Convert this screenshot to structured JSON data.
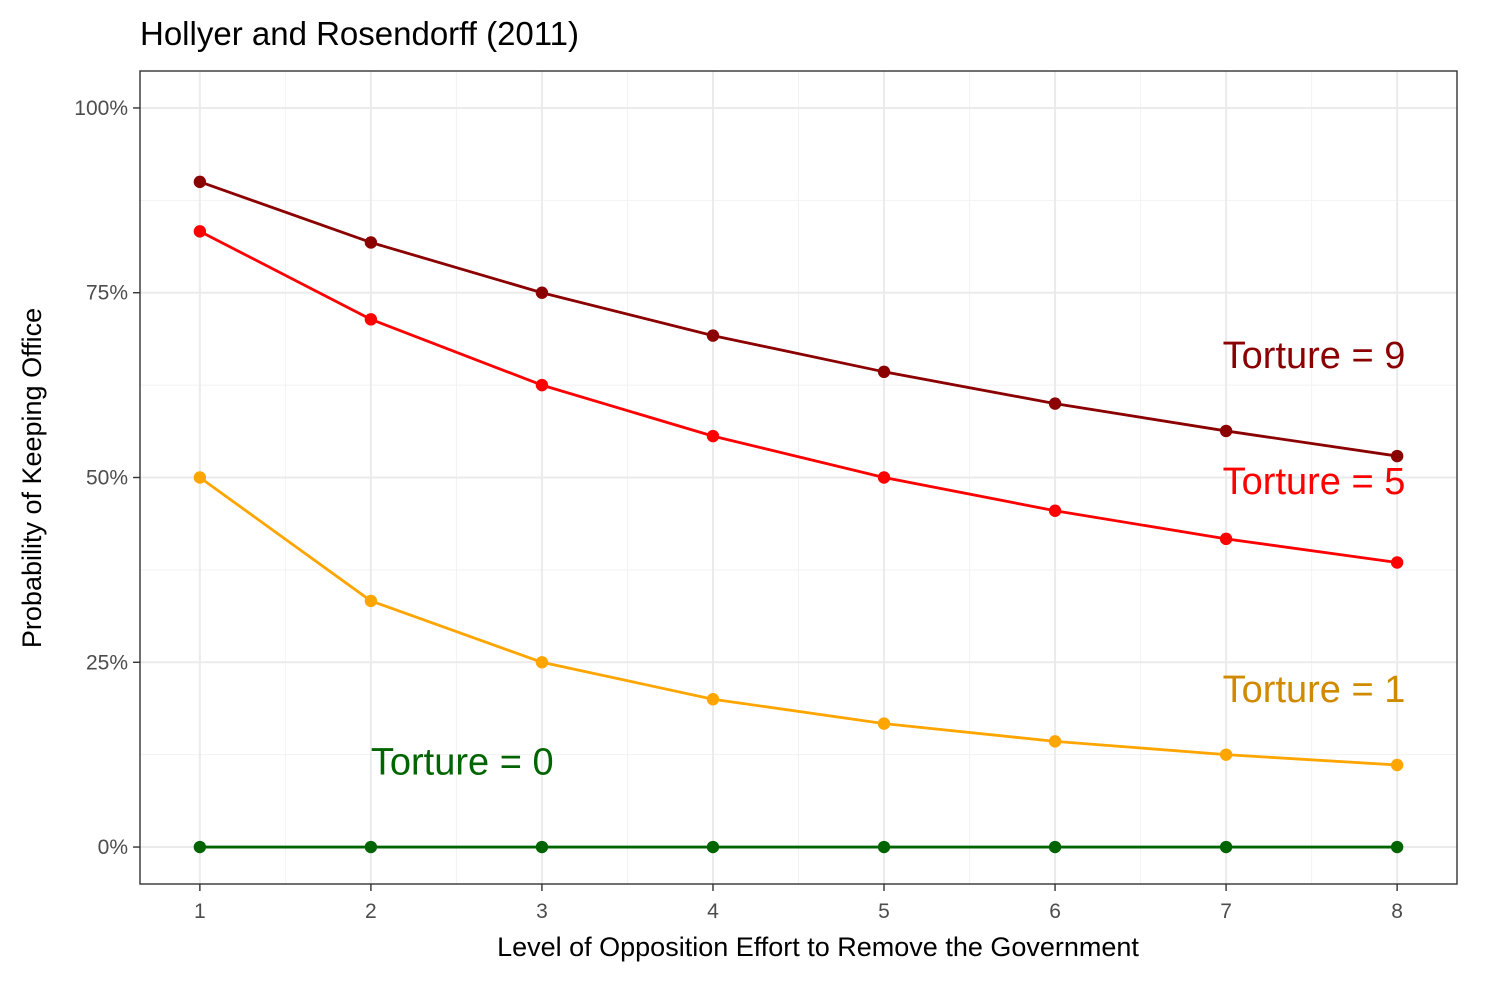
{
  "chart_data": {
    "type": "line",
    "title": "Hollyer and Rosendorff (2011)",
    "xlabel": "Level of Opposition Effort to Remove the Government",
    "ylabel": "Probability of Keeping Office",
    "xlim": [
      0.65,
      8.35
    ],
    "ylim": [
      -0.05,
      1.05
    ],
    "x": [
      1,
      2,
      3,
      4,
      5,
      6,
      7,
      8
    ],
    "x_ticks": [
      "1",
      "2",
      "3",
      "4",
      "5",
      "6",
      "7",
      "8"
    ],
    "y_ticks": [
      {
        "value": 0,
        "label": "0%"
      },
      {
        "value": 0.25,
        "label": "25%"
      },
      {
        "value": 0.5,
        "label": "50%"
      },
      {
        "value": 0.75,
        "label": "75%"
      },
      {
        "value": 1,
        "label": "100%"
      }
    ],
    "grid": true,
    "legend": "none",
    "series": [
      {
        "name": "Torture = 9",
        "color": "#8B0000",
        "label_color": "#8B0000",
        "label_at": [
          6.98,
          0.648
        ],
        "values": [
          0.9,
          0.818,
          0.75,
          0.692,
          0.643,
          0.6,
          0.563,
          0.529
        ]
      },
      {
        "name": "Torture = 5",
        "color": "#FF0000",
        "label_color": "#FF0000",
        "label_at": [
          6.98,
          0.478
        ],
        "values": [
          0.833,
          0.714,
          0.625,
          0.556,
          0.5,
          0.455,
          0.417,
          0.385
        ]
      },
      {
        "name": "Torture = 1",
        "color": "#FFA500",
        "label_color": "#D08A00",
        "label_at": [
          6.98,
          0.196
        ],
        "values": [
          0.5,
          0.333,
          0.25,
          0.2,
          0.167,
          0.143,
          0.125,
          0.111
        ]
      },
      {
        "name": "Torture = 0",
        "color": "#006400",
        "label_color": "#006400",
        "label_at": [
          2.0,
          0.098
        ],
        "values": [
          0,
          0,
          0,
          0,
          0,
          0,
          0,
          0
        ]
      }
    ]
  }
}
